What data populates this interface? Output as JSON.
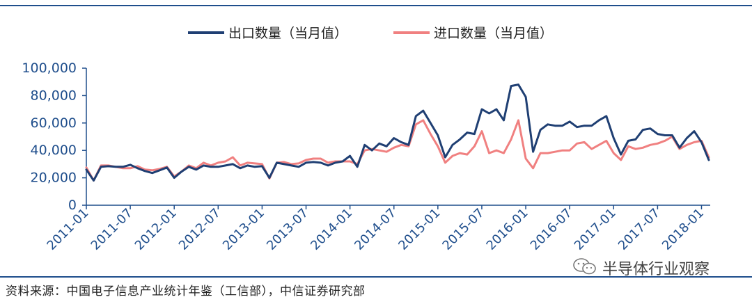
{
  "chart_data": {
    "type": "line",
    "title": "",
    "xlabel": "",
    "ylabel": "",
    "ylim": [
      0,
      100000
    ],
    "y_ticks": [
      "0",
      "20,000",
      "40,000",
      "60,000",
      "80,000",
      "100,000"
    ],
    "x_ticks": [
      "2011-01",
      "2011-07",
      "2012-01",
      "2012-07",
      "2013-01",
      "2013-07",
      "2014-01",
      "2014-07",
      "2015-01",
      "2015-07",
      "2016-01",
      "2016-07",
      "2017-01",
      "2017-07",
      "2018-01"
    ],
    "x_start": "2011-01",
    "x_end": "2018-03",
    "legend_position": "top",
    "grid": false,
    "series": [
      {
        "name": "出口数量（当月值）",
        "color": "#1f3f73",
        "values": [
          26000,
          18000,
          28000,
          28500,
          28000,
          28000,
          29500,
          27000,
          25000,
          23500,
          25500,
          27500,
          20000,
          24500,
          28000,
          26000,
          29000,
          28000,
          28000,
          29000,
          30000,
          27000,
          29000,
          28000,
          28500,
          20000,
          31000,
          30000,
          29000,
          28000,
          31000,
          31500,
          31000,
          29000,
          31000,
          32000,
          36000,
          28000,
          44000,
          40000,
          45000,
          43000,
          49000,
          46000,
          44000,
          65000,
          69000,
          60000,
          51000,
          35000,
          44000,
          48000,
          53000,
          52000,
          70000,
          67000,
          70000,
          62000,
          87000,
          88000,
          79000,
          39000,
          55000,
          59000,
          58000,
          58000,
          61000,
          57000,
          58000,
          58000,
          62000,
          65000,
          49000,
          37000,
          47000,
          48000,
          55000,
          56000,
          52000,
          51000,
          51000,
          42000,
          49000,
          54000,
          46000,
          33000
        ]
      },
      {
        "name": "进口数量（当月值）",
        "color": "#f08080",
        "values": [
          27500,
          18000,
          29000,
          29000,
          28000,
          27000,
          27000,
          28500,
          26000,
          25500,
          26500,
          28000,
          21000,
          24500,
          29000,
          27000,
          31000,
          29000,
          31000,
          32000,
          35000,
          29000,
          31000,
          30500,
          30000,
          19500,
          31000,
          31500,
          30000,
          30500,
          33000,
          34000,
          34000,
          31000,
          32000,
          32000,
          32000,
          30000,
          40000,
          41000,
          40000,
          39000,
          42000,
          44000,
          43000,
          59000,
          62000,
          52000,
          43000,
          31000,
          36000,
          38000,
          37000,
          43000,
          54000,
          38000,
          40000,
          38000,
          48000,
          62000,
          34000,
          27000,
          38000,
          38000,
          39000,
          40000,
          40000,
          45000,
          46000,
          41000,
          44000,
          47000,
          38000,
          33000,
          43000,
          41000,
          42000,
          44000,
          45000,
          47000,
          50000,
          41000,
          44000,
          46000,
          47000,
          35000
        ]
      }
    ]
  },
  "footer": {
    "source": "资料来源：中国电子信息产业统计年鉴（工信部），中信证券研究部",
    "watermark": "半导体行业观察"
  },
  "colors": {
    "axis": "#1f4e8c",
    "tick_label": "#1f4e8c",
    "rule": "#1f4e8c"
  }
}
